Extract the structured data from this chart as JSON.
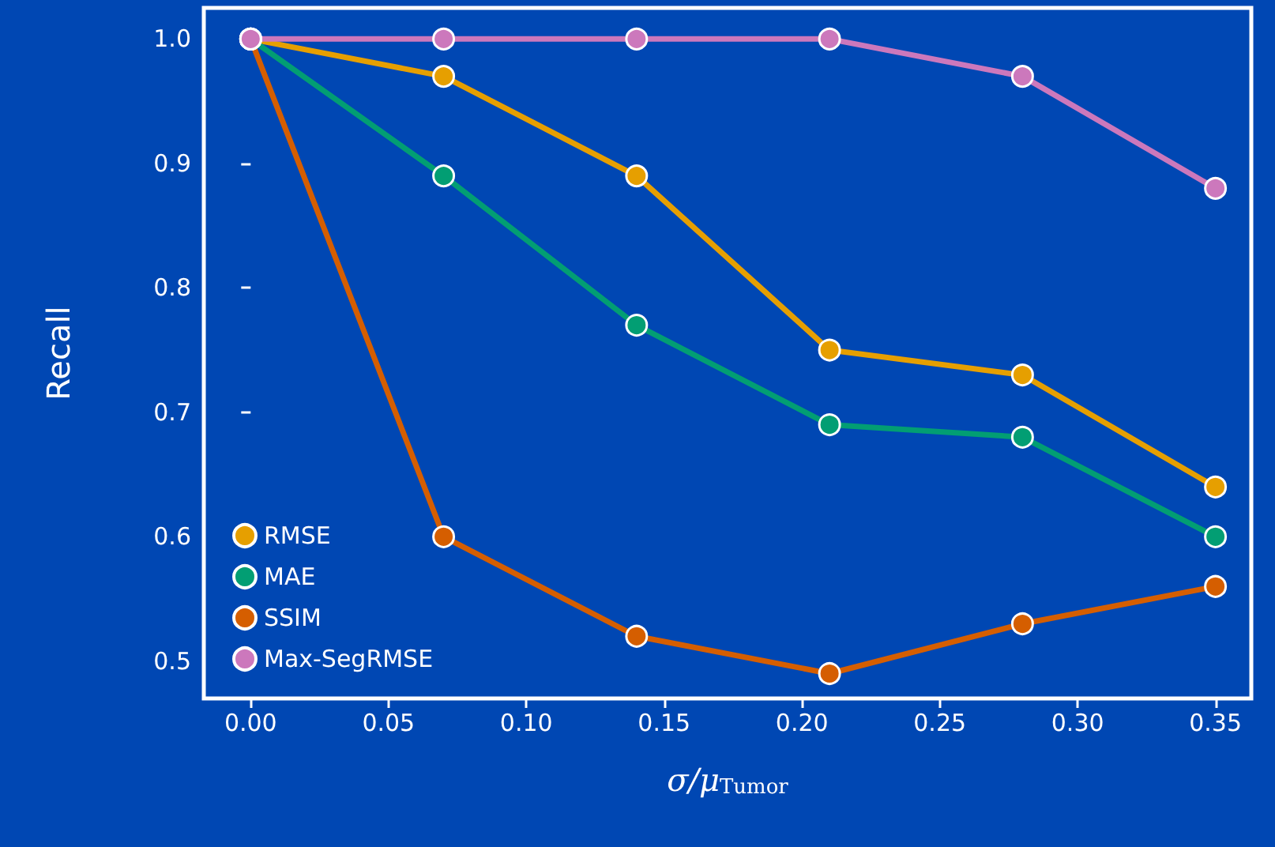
{
  "chart_data": {
    "type": "line",
    "xlabel": "σ/μ$_{Tumor}$",
    "ylabel": "Recall",
    "x": [
      0,
      0.07,
      0.14,
      0.21,
      0.28,
      0.35
    ],
    "series": [
      {
        "name": "RMSE",
        "color": "#e69f00",
        "values": [
          1.0,
          0.97,
          0.89,
          0.75,
          0.73,
          0.64
        ]
      },
      {
        "name": "MAE",
        "color": "#029e73",
        "values": [
          1.0,
          0.89,
          0.77,
          0.69,
          0.68,
          0.6
        ]
      },
      {
        "name": "SSIM",
        "color": "#d55e00",
        "values": [
          1.0,
          0.6,
          0.52,
          0.49,
          0.53,
          0.56
        ]
      },
      {
        "name": "Max-SegRMSE",
        "color": "#cc78bc",
        "values": [
          1.0,
          1.0,
          1.0,
          1.0,
          0.97,
          0.88
        ]
      }
    ],
    "xlim": [
      -0.017,
      0.363
    ],
    "ylim": [
      0.47,
      1.025
    ],
    "xticks": [
      {
        "value": 0,
        "label": "0.00"
      },
      {
        "value": 0.05,
        "label": "0.05"
      },
      {
        "value": 0.1,
        "label": "0.10"
      },
      {
        "value": 0.15,
        "label": "0.15"
      },
      {
        "value": 0.2,
        "label": "0.20"
      },
      {
        "value": 0.25,
        "label": "0.25"
      },
      {
        "value": 0.3,
        "label": "0.30"
      },
      {
        "value": 0.35,
        "label": "0.35"
      }
    ],
    "yticks": [
      {
        "value": 0.5,
        "label": "0.5"
      },
      {
        "value": 0.6,
        "label": "0.6"
      },
      {
        "value": 0.7,
        "label": "0.7"
      },
      {
        "value": 0.8,
        "label": "0.8"
      },
      {
        "value": 0.9,
        "label": "0.9"
      },
      {
        "value": 1,
        "label": "1.0"
      }
    ],
    "grid": false,
    "legend": "bottom left",
    "marker": "circle",
    "line_style": "solid"
  }
}
